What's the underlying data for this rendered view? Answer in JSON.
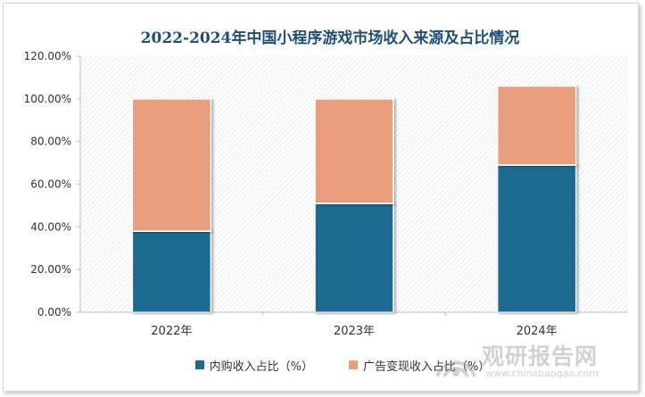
{
  "chart_data": {
    "type": "bar",
    "stacked": true,
    "title": "2022-2024年中国小程序游戏市场收入来源及占比情况",
    "categories": [
      "2022年",
      "2023年",
      "2024年"
    ],
    "series": [
      {
        "name": "内购收入占比（%）",
        "values": [
          38,
          51,
          69
        ],
        "color": "#1e6b8f"
      },
      {
        "name": "广告变现收入占比（%）",
        "values": [
          62,
          49,
          37
        ],
        "color": "#e89e7c"
      }
    ],
    "yticks": [
      "0.00%",
      "20.00%",
      "40.00%",
      "60.00%",
      "80.00%",
      "100.00%",
      "120.00%"
    ],
    "ylim": [
      0,
      120
    ],
    "grid": false,
    "background": "diagonal-hatch",
    "legend": "bottom"
  },
  "watermark": {
    "main": "观研报告网",
    "sub": "www.chinabaogao.com"
  }
}
